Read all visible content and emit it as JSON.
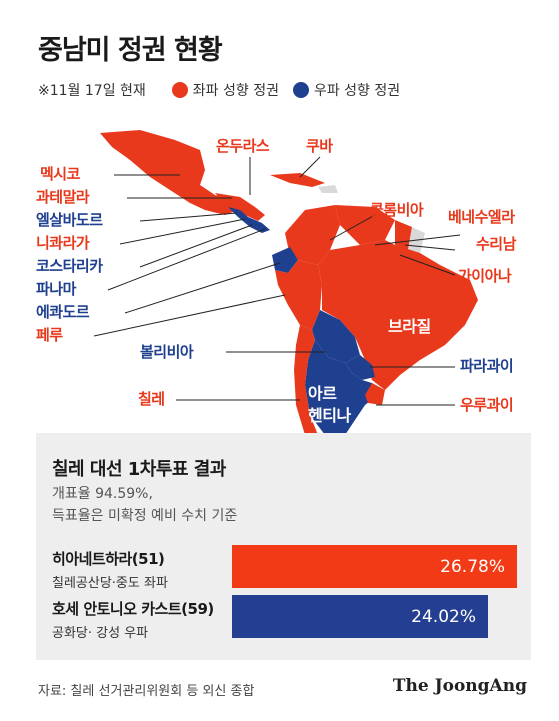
{
  "title": "중남미 정권 현황",
  "legend": {
    "note": "※11월 17일 현재",
    "left_label": "좌파 성향 정권",
    "right_label": "우파 성향 정권"
  },
  "colors": {
    "left": "#e8391d",
    "right": "#1f3f8f",
    "neutral": "#d9d9d9"
  },
  "countries": {
    "mexico": "멕시코",
    "guatemala": "과테말라",
    "el_salvador": "엘살바도르",
    "nicaragua": "니콰라가",
    "costa_rica": "코스타리카",
    "panama": "파나마",
    "ecuador": "에콰도르",
    "peru": "페루",
    "bolivia": "볼리비아",
    "chile": "칠레",
    "honduras": "온두라스",
    "cuba": "쿠바",
    "colombia": "콜롬비아",
    "venezuela": "베네수엘라",
    "suriname": "수리남",
    "guyana": "가이아나",
    "brazil": "브라질",
    "paraguay": "파라과이",
    "argentina": "아르\n헨티나",
    "uruguay": "우루과이"
  },
  "panel": {
    "title": "칠레 대선 1차투표 결과",
    "note_line1": "개표율 94.59%,",
    "note_line2": "득표율은 미확정 예비 수치 기준",
    "candidates": [
      {
        "name": "히아네트하라(51)",
        "sub": "칠레공산당·중도 좌파",
        "value": "26.78%",
        "share": 26.78
      },
      {
        "name": "호세 안토니오 카스트(59)",
        "sub": "공화당· 강성 우파",
        "value": "24.02%",
        "share": 24.02
      }
    ]
  },
  "source": "자료: 칠레 선거관리위원회 등 외신 종합",
  "brand": "The JoongAng"
}
